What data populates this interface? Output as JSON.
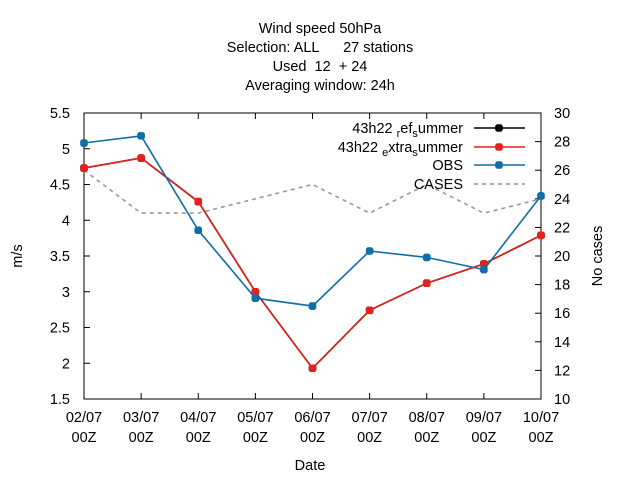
{
  "chart_data": {
    "type": "line",
    "title_lines": [
      "Wind speed 50hPa",
      "Selection: ALL      27 stations",
      "Used  12  + 24",
      "Averaging window: 24h"
    ],
    "xlabel": "Date",
    "ylabel": "m/s",
    "y2label": "No cases",
    "categories": [
      [
        "02/07",
        "00Z"
      ],
      [
        "03/07",
        "00Z"
      ],
      [
        "04/07",
        "00Z"
      ],
      [
        "05/07",
        "00Z"
      ],
      [
        "06/07",
        "00Z"
      ],
      [
        "07/07",
        "00Z"
      ],
      [
        "08/07",
        "00Z"
      ],
      [
        "09/07",
        "00Z"
      ],
      [
        "10/07",
        "00Z"
      ]
    ],
    "ylim": [
      1.5,
      5.5
    ],
    "yticks": [
      "1.5",
      "2",
      "2.5",
      "3",
      "3.5",
      "4",
      "4.5",
      "5",
      "5.5"
    ],
    "y2lim": [
      10,
      30
    ],
    "y2ticks": [
      "10",
      "12",
      "14",
      "16",
      "18",
      "20",
      "22",
      "24",
      "26",
      "28",
      "30"
    ],
    "legend_position": "top-right",
    "series": [
      {
        "name_parts": [
          [
            "43h22 ",
            ""
          ],
          [
            "r",
            "sub"
          ],
          [
            "ef",
            ""
          ],
          [
            "s",
            "sub"
          ],
          [
            "ummer",
            ""
          ]
        ],
        "color": "#000000",
        "axis": "y",
        "style": "solid-marker",
        "values": [
          4.73,
          4.87,
          4.26,
          3.0,
          1.93,
          2.74,
          3.12,
          3.39,
          3.79
        ]
      },
      {
        "name_parts": [
          [
            "43h22 ",
            ""
          ],
          [
            "e",
            "sub"
          ],
          [
            "xtra",
            ""
          ],
          [
            "s",
            "sub"
          ],
          [
            "ummer",
            ""
          ]
        ],
        "color": "#e0231c",
        "axis": "y",
        "style": "solid-marker",
        "values": [
          4.73,
          4.87,
          4.26,
          3.0,
          1.93,
          2.74,
          3.12,
          3.39,
          3.79
        ]
      },
      {
        "name_parts": [
          [
            "OBS",
            ""
          ]
        ],
        "color": "#0f6fa7",
        "axis": "y",
        "style": "solid-marker",
        "values": [
          5.08,
          5.18,
          3.86,
          2.91,
          2.8,
          3.57,
          3.48,
          3.31,
          4.34
        ]
      },
      {
        "name_parts": [
          [
            "CASES",
            ""
          ]
        ],
        "color": "#999999",
        "axis": "y2",
        "style": "dashed",
        "values": [
          26,
          23,
          23,
          24,
          25,
          23,
          25,
          23,
          24
        ]
      }
    ]
  }
}
